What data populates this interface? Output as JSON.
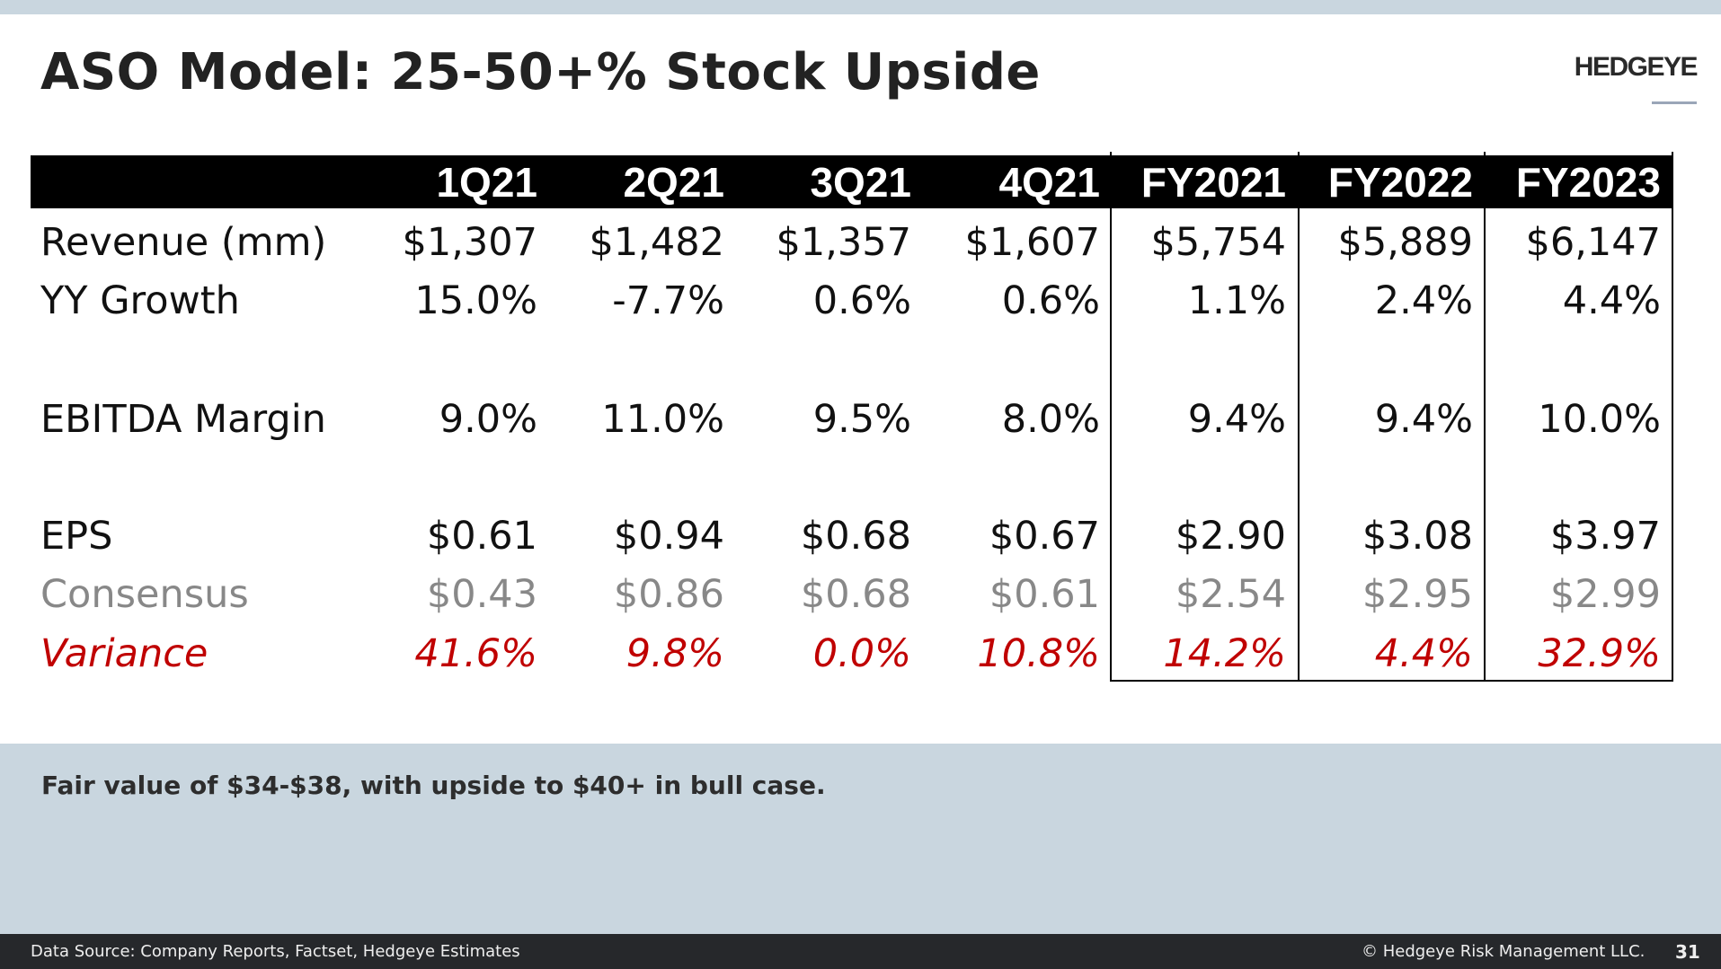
{
  "title": "ASO Model: 25-50+% Stock Upside",
  "logo": "HEDGEYE",
  "table": {
    "columns": [
      "1Q21",
      "2Q21",
      "3Q21",
      "4Q21",
      "FY2021",
      "FY2022",
      "FY2023"
    ],
    "rows": [
      {
        "label": "Revenue (mm)",
        "style": "black",
        "values": [
          "$1,307",
          "$1,482",
          "$1,357",
          "$1,607",
          "$5,754",
          "$5,889",
          "$6,147"
        ]
      },
      {
        "label": "YY Growth",
        "style": "black",
        "values": [
          "15.0%",
          "-7.7%",
          "0.6%",
          "0.6%",
          "1.1%",
          "2.4%",
          "4.4%"
        ]
      },
      {
        "label": "EBITDA Margin",
        "style": "black",
        "values": [
          "9.0%",
          "11.0%",
          "9.5%",
          "8.0%",
          "9.4%",
          "9.4%",
          "10.0%"
        ]
      },
      {
        "label": "EPS",
        "style": "black",
        "values": [
          "$0.61",
          "$0.94",
          "$0.68",
          "$0.67",
          "$2.90",
          "$3.08",
          "$3.97"
        ]
      },
      {
        "label": "Consensus",
        "style": "grey",
        "values": [
          "$0.43",
          "$0.86",
          "$0.68",
          "$0.61",
          "$2.54",
          "$2.95",
          "$2.99"
        ]
      },
      {
        "label": "Variance",
        "style": "red",
        "values": [
          "41.6%",
          "9.8%",
          "0.0%",
          "10.8%",
          "14.2%",
          "4.4%",
          "32.9%"
        ]
      }
    ]
  },
  "note": "Fair value of $34-$38, with upside to $40+ in bull case.",
  "footer": {
    "source": "Data Source: Company Reports, Factset, Hedgeye Estimates",
    "copyright": "© Hedgeye Risk Management LLC.",
    "page": "31"
  },
  "colors": {
    "band": "#c9d6df",
    "footer": "#26282b",
    "variance": "#c00000",
    "consensus": "#888888"
  }
}
